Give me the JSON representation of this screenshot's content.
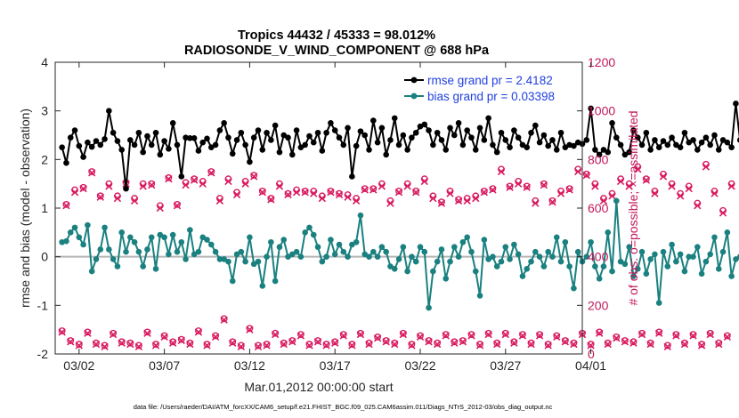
{
  "chart_data": {
    "type": "line",
    "title_line1": "Tropics 44432 / 45333 = 98.012%",
    "title_line2": "RADIOSONDE_V_WIND_COMPONENT @ 688 hPa",
    "xlabel": "Mar.01,2012 00:00:00 start",
    "ylabel": "rmse and bias (model - observation)",
    "ylabel_right": "# of obs: o=possible; ×=assimilated",
    "ylim": [
      -2,
      4
    ],
    "ylim_right": [
      0,
      1200
    ],
    "xlim": [
      0.6,
      31.5
    ],
    "yticks": [
      -2,
      -1,
      0,
      1,
      2,
      3,
      4
    ],
    "yticks_right": [
      0,
      200,
      400,
      600,
      800,
      1000,
      1200
    ],
    "xticks": [
      {
        "day": 2,
        "label": "03/02"
      },
      {
        "day": 7,
        "label": "03/07"
      },
      {
        "day": 12,
        "label": "03/12"
      },
      {
        "day": 17,
        "label": "03/17"
      },
      {
        "day": 22,
        "label": "03/22"
      },
      {
        "day": 27,
        "label": "03/27"
      },
      {
        "day": 32,
        "label": "04/01"
      }
    ],
    "step_days": 0.25,
    "start_day": 1.0,
    "legend_position": "top-right",
    "colors": {
      "rmse": "#000000",
      "bias": "#1a8080",
      "obs": "#d81b60",
      "zero_line": "#b5b5b5"
    },
    "series": [
      {
        "name": "rmse grand pr = 2.4182",
        "axis": "left",
        "values": [
          2.25,
          1.93,
          2.45,
          2.6,
          2.28,
          2.05,
          2.35,
          2.26,
          2.38,
          2.3,
          2.42,
          3.0,
          2.55,
          2.38,
          2.2,
          1.4,
          2.4,
          2.3,
          2.55,
          2.15,
          2.48,
          2.3,
          2.55,
          2.1,
          2.38,
          2.22,
          2.75,
          2.3,
          1.65,
          2.45,
          2.44,
          2.44,
          2.18,
          2.35,
          2.43,
          2.25,
          2.3,
          2.6,
          2.75,
          2.45,
          2.12,
          2.4,
          2.55,
          2.3,
          1.95,
          2.45,
          2.6,
          2.2,
          2.55,
          2.4,
          2.7,
          2.15,
          2.5,
          2.45,
          2.1,
          2.6,
          2.25,
          2.3,
          2.48,
          2.35,
          2.55,
          2.18,
          2.55,
          2.75,
          2.6,
          2.45,
          2.3,
          2.65,
          1.65,
          2.28,
          2.58,
          2.5,
          2.2,
          2.8,
          2.35,
          2.65,
          2.1,
          2.4,
          2.85,
          2.3,
          2.5,
          2.2,
          2.45,
          2.55,
          2.68,
          2.72,
          2.6,
          2.3,
          2.55,
          2.4,
          2.2,
          2.65,
          2.5,
          2.75,
          2.3,
          2.6,
          2.45,
          2.2,
          2.65,
          2.4,
          2.85,
          2.3,
          2.15,
          2.55,
          2.4,
          2.25,
          2.6,
          2.45,
          2.3,
          2.25,
          2.55,
          2.7,
          2.35,
          2.5,
          2.28,
          2.4,
          2.2,
          2.55,
          2.25,
          2.3,
          2.28,
          2.35,
          2.32,
          2.4,
          3.05,
          2.2,
          2.1,
          2.2,
          2.15,
          2.75,
          2.45,
          2.3,
          2.1,
          2.15,
          2.6,
          2.45,
          2.3,
          2.55,
          2.2,
          2.4,
          2.25,
          2.38,
          2.3,
          2.45,
          2.3,
          2.25,
          2.55,
          2.35,
          2.4,
          2.2,
          2.35,
          2.45,
          2.3,
          2.5,
          2.2,
          2.4,
          2.35,
          2.25,
          3.15,
          2.4,
          2.1,
          1.85,
          2.38,
          2.4
        ]
      },
      {
        "name": "bias grand pr = 0.03398",
        "axis": "left",
        "values": [
          0.3,
          0.32,
          0.5,
          0.6,
          0.4,
          0.25,
          0.65,
          -0.3,
          -0.05,
          0.15,
          0.6,
          0.15,
          -0.05,
          -0.2,
          0.5,
          0.1,
          0.4,
          0.3,
          0.1,
          -0.2,
          0.15,
          0.4,
          -0.25,
          0.45,
          0.4,
          0.05,
          0.45,
          0.1,
          0.3,
          -0.05,
          0.55,
          0.05,
          0.1,
          0.4,
          0.35,
          0.25,
          0.1,
          -0.05,
          -0.05,
          -0.1,
          -0.5,
          0.05,
          0.1,
          -0.1,
          0.4,
          -0.15,
          -0.1,
          -0.6,
          0.0,
          0.3,
          -0.5,
          0.2,
          0.35,
          0.0,
          0.05,
          0.1,
          0.0,
          0.5,
          0.6,
          0.45,
          0.2,
          -0.1,
          0.0,
          0.35,
          0.05,
          0.25,
          0.1,
          0.0,
          0.25,
          0.3,
          0.85,
          0.05,
          0.0,
          0.1,
          0.0,
          0.2,
          0.1,
          -0.2,
          -0.25,
          -0.05,
          0.2,
          -0.3,
          0.0,
          -0.1,
          0.2,
          0.1,
          -1.05,
          -0.3,
          -0.1,
          0.15,
          -0.45,
          -0.1,
          0.2,
          0.0,
          0.3,
          0.4,
          0.1,
          -0.3,
          -0.8,
          0.35,
          -0.05,
          0.0,
          -0.2,
          -0.1,
          0.2,
          -0.05,
          0.25,
          0.05,
          -0.4,
          -0.25,
          -0.1,
          0.1,
          0.0,
          -0.2,
          0.1,
          0.0,
          0.4,
          -0.1,
          0.3,
          -0.2,
          -0.65,
          0.1,
          -0.1,
          0.0,
          0.3,
          -0.2,
          -0.45,
          -0.2,
          0.5,
          -0.3,
          1.15,
          -0.1,
          -0.15,
          0.2,
          -0.4,
          -0.25,
          0.1,
          -0.35,
          -0.05,
          0.05,
          -0.95,
          0.1,
          -0.2,
          0.25,
          -0.1,
          0.05,
          -0.3,
          0.0,
          0.0,
          0.2,
          -0.35,
          -0.1,
          0.05,
          0.4,
          -0.25,
          0.1,
          0.5,
          -0.4,
          -0.05,
          0.0,
          0.05,
          0.0,
          0.3
        ]
      },
      {
        "name": "obs possible",
        "axis": "right",
        "values": [
          95,
          615,
          55,
          675,
          40,
          685,
          90,
          750,
          45,
          650,
          35,
          700,
          85,
          650,
          50,
          705,
          45,
          640,
          35,
          700,
          90,
          700,
          40,
          610,
          75,
          725,
          50,
          615,
          60,
          705,
          45,
          720,
          95,
          710,
          40,
          750,
          75,
          640,
          145,
          720,
          50,
          665,
          35,
          710,
          105,
          735,
          35,
          670,
          40,
          640,
          85,
          700,
          45,
          660,
          55,
          675,
          80,
          670,
          40,
          670,
          55,
          650,
          40,
          670,
          50,
          660,
          80,
          655,
          40,
          640,
          85,
          680,
          45,
          680,
          70,
          700,
          55,
          630,
          45,
          670,
          85,
          700,
          40,
          670,
          75,
          720,
          55,
          650,
          45,
          625,
          80,
          670,
          50,
          635,
          55,
          640,
          80,
          650,
          40,
          670,
          85,
          680,
          45,
          760,
          85,
          690,
          50,
          710,
          80,
          690,
          45,
          630,
          80,
          700,
          40,
          630,
          75,
          670,
          55,
          680,
          45,
          760,
          85,
          740,
          40,
          700,
          90,
          640,
          45,
          660,
          70,
          720,
          55,
          700,
          50,
          770,
          85,
          720,
          45,
          670,
          90,
          740,
          35,
          700,
          80,
          660,
          45,
          690,
          80,
          620,
          40,
          780,
          85,
          670,
          45,
          590,
          75,
          700
        ]
      },
      {
        "name": "obs assimilated",
        "axis": "right",
        "values": [
          90,
          610,
          50,
          665,
          35,
          680,
          85,
          745,
          40,
          645,
          30,
          690,
          80,
          640,
          45,
          700,
          40,
          630,
          30,
          690,
          85,
          695,
          35,
          600,
          70,
          720,
          45,
          610,
          55,
          695,
          40,
          715,
          90,
          700,
          35,
          745,
          70,
          630,
          140,
          710,
          45,
          655,
          30,
          700,
          100,
          730,
          30,
          665,
          35,
          635,
          80,
          690,
          40,
          655,
          50,
          665,
          75,
          665,
          35,
          660,
          50,
          640,
          35,
          665,
          45,
          655,
          75,
          645,
          35,
          630,
          80,
          675,
          40,
          675,
          65,
          690,
          50,
          620,
          40,
          665,
          80,
          690,
          35,
          665,
          70,
          710,
          50,
          640,
          40,
          620,
          75,
          660,
          45,
          630,
          50,
          630,
          75,
          640,
          35,
          665,
          80,
          675,
          40,
          750,
          80,
          685,
          45,
          700,
          75,
          685,
          40,
          620,
          75,
          695,
          35,
          625,
          70,
          660,
          50,
          675,
          40,
          750,
          80,
          735,
          35,
          690,
          85,
          630,
          40,
          650,
          65,
          710,
          50,
          690,
          45,
          760,
          80,
          715,
          40,
          660,
          85,
          730,
          30,
          690,
          75,
          650,
          40,
          680,
          75,
          610,
          35,
          770,
          80,
          660,
          40,
          580,
          70,
          690
        ]
      }
    ]
  },
  "footer": "data file: /Users/raeder/DAI/ATM_forcXX/CAM6_setup/f.e21.FHIST_BGC.f09_025.CAM6assim.011/Diags_NTrS_2012-03/obs_diag_output.nc"
}
